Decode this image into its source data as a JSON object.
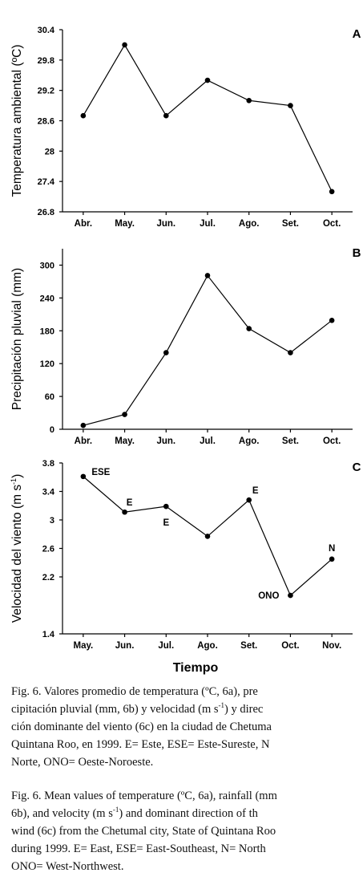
{
  "chart_data": [
    {
      "type": "line",
      "panel": "A",
      "y_label": [
        "Temperatura ambiental (ºC)"
      ],
      "categories": [
        "Abr.",
        "May.",
        "Jun.",
        "Jul.",
        "Ago.",
        "Set.",
        "Oct."
      ],
      "values": [
        28.7,
        30.1,
        28.7,
        29.4,
        29.0,
        28.9,
        27.2
      ],
      "ylim": [
        26.8,
        30.4
      ],
      "yticks": [
        26.8,
        27.4,
        28,
        28.6,
        29.2,
        29.8,
        30.4
      ],
      "color": "#000000"
    },
    {
      "type": "line",
      "panel": "B",
      "y_label": [
        "Precipitación pluvial (mm)"
      ],
      "categories": [
        "Abr.",
        "May.",
        "Jun.",
        "Jul.",
        "Ago.",
        "Set.",
        "Oct."
      ],
      "values": [
        7,
        27,
        140,
        281,
        184,
        140,
        199
      ],
      "ylim": [
        0,
        330
      ],
      "yticks": [
        0,
        60,
        120,
        180,
        240,
        300
      ],
      "color": "#000000"
    },
    {
      "type": "line",
      "panel": "C",
      "y_label": [
        "Velocidad del viento (m s",
        "-1",
        ")"
      ],
      "x_label": "Tiempo",
      "categories": [
        "May.",
        "Jun.",
        "Jul.",
        "Ago.",
        "Set.",
        "Oct.",
        "Nov."
      ],
      "values": [
        3.61,
        3.11,
        3.19,
        2.77,
        3.28,
        1.94,
        2.45
      ],
      "point_labels": [
        "ESE",
        "E",
        "E",
        null,
        "E",
        "ONO",
        "N"
      ],
      "ylim": [
        1.4,
        3.8
      ],
      "yticks": [
        1.4,
        2.2,
        2.6,
        3,
        3.4,
        3.8
      ],
      "color": "#000000"
    }
  ],
  "captions": [
    [
      [
        "Fig. 6. Valores promedio de temperatura (ºC, 6a), pre"
      ],
      [
        "cipitación pluvial (mm, 6b) y velocidad (m s",
        {
          "sup": "-1"
        },
        ") y direc"
      ],
      [
        "ción dominante del viento (6c) en la ciudad de Chetuma"
      ],
      [
        "Quintana Roo, en 1999. E= Este, ESE= Este-Sureste, N"
      ],
      [
        "Norte, ONO= Oeste-Noroeste."
      ]
    ],
    [
      [
        "Fig. 6. Mean values of temperature (ºC, 6a), rainfall (mm"
      ],
      [
        "6b), and velocity (m s",
        {
          "sup": "-1"
        },
        ") and dominant direction of th"
      ],
      [
        "wind (6c) from the Chetumal city, State of Quintana Roo"
      ],
      [
        "during 1999. E= East, ESE= East-Southeast, N= North"
      ],
      [
        "ONO= West-Northwest."
      ]
    ]
  ]
}
